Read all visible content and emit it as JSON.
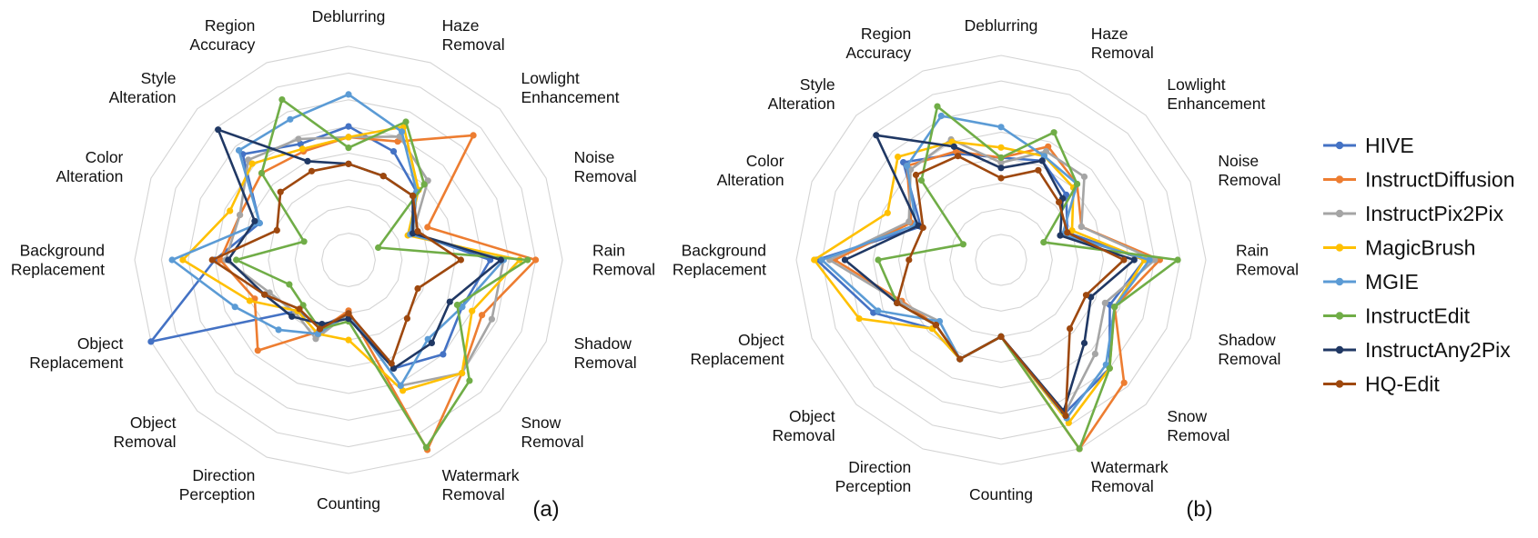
{
  "chart_data": [
    {
      "type": "radar",
      "panel_label": "(a)",
      "categories": [
        [
          "Deblurring"
        ],
        [
          "Haze",
          "Removal"
        ],
        [
          "Lowlight",
          "Enhancement"
        ],
        [
          "Noise",
          "Removal"
        ],
        [
          "Rain",
          "Removal"
        ],
        [
          "Shadow",
          "Removal"
        ],
        [
          "Snow",
          "Removal"
        ],
        [
          "Watermark",
          "Removal"
        ],
        [
          "Counting"
        ],
        [
          "Direction",
          "Perception"
        ],
        [
          "Object",
          "Removal"
        ],
        [
          "Object",
          "Replacement"
        ],
        [
          "Background",
          "Replacement"
        ],
        [
          "Color",
          "Alteration"
        ],
        [
          "Style",
          "Alteration"
        ],
        [
          "Region",
          "Accuracy"
        ]
      ],
      "grid_rings": 8,
      "max": 8,
      "series": [
        {
          "name": "HIVE",
          "color": "#4472C4",
          "values": [
            5.0,
            4.4,
            3.6,
            2.6,
            5.3,
            4.6,
            5.0,
            4.4,
            2.0,
            2.7,
            2.7,
            8.0,
            5.0,
            3.6,
            5.6,
            4.7
          ]
        },
        {
          "name": "InstructDiffusion",
          "color": "#ED7D31",
          "values": [
            4.6,
            4.8,
            6.6,
            3.2,
            7.0,
            5.4,
            6.0,
            7.7,
            1.9,
            2.9,
            4.8,
            3.8,
            4.8,
            4.4,
            4.6,
            4.4
          ]
        },
        {
          "name": "InstructPix2Pix",
          "color": "#A5A5A5",
          "values": [
            4.6,
            5.0,
            4.2,
            2.6,
            5.8,
            5.8,
            6.0,
            5.1,
            2.0,
            3.2,
            2.8,
            3.2,
            4.6,
            4.4,
            5.3,
            4.9
          ]
        },
        {
          "name": "MagicBrush",
          "color": "#FFC000",
          "values": [
            4.6,
            5.4,
            3.7,
            2.4,
            6.4,
            5.0,
            6.0,
            5.3,
            3.0,
            3.0,
            2.7,
            4.0,
            6.2,
            4.8,
            5.1,
            4.5
          ]
        },
        {
          "name": "MGIE",
          "color": "#5B9BD5",
          "values": [
            6.2,
            5.2,
            3.6,
            2.5,
            5.8,
            4.6,
            4.2,
            5.1,
            2.0,
            3.0,
            3.7,
            4.6,
            6.6,
            3.6,
            5.8,
            5.7
          ]
        },
        {
          "name": "InstructEdit",
          "color": "#70AD47",
          "values": [
            4.2,
            5.6,
            4.0,
            1.2,
            6.7,
            4.4,
            6.4,
            7.6,
            2.3,
            2.8,
            2.4,
            2.4,
            4.2,
            1.8,
            4.6,
            6.5
          ]
        },
        {
          "name": "InstructAny2Pix",
          "color": "#203864",
          "values": [
            3.6,
            3.4,
            3.4,
            2.6,
            5.7,
            4.1,
            4.4,
            4.4,
            2.2,
            2.6,
            3.0,
            3.4,
            4.5,
            3.8,
            6.9,
            4.0
          ]
        },
        {
          "name": "HQ-Edit",
          "color": "#9E480E",
          "values": [
            3.6,
            3.4,
            3.4,
            2.8,
            4.2,
            2.8,
            3.1,
            4.2,
            2.0,
            2.8,
            2.6,
            3.4,
            5.1,
            2.9,
            3.6,
            3.6
          ]
        }
      ]
    },
    {
      "type": "radar",
      "panel_label": "(b)",
      "categories": [
        [
          "Deblurring"
        ],
        [
          "Haze",
          "Removal"
        ],
        [
          "Lowlight",
          "Enhancement"
        ],
        [
          "Noise",
          "Removal"
        ],
        [
          "Rain",
          "Removal"
        ],
        [
          "Shadow",
          "Removal"
        ],
        [
          "Snow",
          "Removal"
        ],
        [
          "Watermark",
          "Removal"
        ],
        [
          "Counting"
        ],
        [
          "Direction",
          "Perception"
        ],
        [
          "Object",
          "Removal"
        ],
        [
          "Object",
          "Replacement"
        ],
        [
          "Background",
          "Replacement"
        ],
        [
          "Color",
          "Alteration"
        ],
        [
          "Style",
          "Alteration"
        ],
        [
          "Region",
          "Accuracy"
        ]
      ],
      "grid_rings": 8,
      "max": 8,
      "series": [
        {
          "name": "HIVE",
          "color": "#4472C4",
          "values": [
            4.0,
            4.2,
            3.6,
            2.8,
            5.6,
            4.6,
            6.0,
            6.5,
            3.0,
            4.2,
            3.8,
            5.4,
            7.2,
            3.4,
            5.4,
            4.5
          ]
        },
        {
          "name": "InstructDiffusion",
          "color": "#ED7D31",
          "values": [
            4.0,
            4.8,
            4.2,
            3.4,
            6.2,
            4.8,
            6.8,
            8.0,
            3.0,
            4.2,
            3.6,
            4.2,
            6.5,
            3.8,
            5.2,
            4.6
          ]
        },
        {
          "name": "InstructPix2Pix",
          "color": "#A5A5A5",
          "values": [
            3.8,
            4.6,
            4.6,
            3.4,
            6.0,
            4.4,
            5.2,
            6.5,
            3.0,
            4.2,
            3.4,
            4.3,
            6.7,
            3.9,
            5.0,
            5.1
          ]
        },
        {
          "name": "MagicBrush",
          "color": "#FFC000",
          "values": [
            4.4,
            4.4,
            4.0,
            3.0,
            5.6,
            4.8,
            6.0,
            6.9,
            3.0,
            4.2,
            3.8,
            6.0,
            7.3,
            4.8,
            5.7,
            5.0
          ]
        },
        {
          "name": "MGIE",
          "color": "#5B9BD5",
          "values": [
            5.2,
            4.4,
            4.2,
            2.6,
            5.8,
            4.8,
            5.8,
            6.7,
            3.0,
            4.2,
            3.4,
            5.2,
            7.0,
            3.6,
            5.2,
            6.1
          ]
        },
        {
          "name": "InstructEdit",
          "color": "#70AD47",
          "values": [
            4.0,
            5.4,
            4.2,
            1.8,
            6.9,
            4.8,
            6.0,
            8.0,
            3.0,
            4.2,
            3.6,
            4.4,
            4.8,
            1.6,
            4.4,
            6.5
          ]
        },
        {
          "name": "InstructAny2Pix",
          "color": "#203864",
          "values": [
            3.6,
            4.2,
            3.4,
            2.5,
            5.2,
            3.8,
            4.6,
            6.4,
            3.0,
            4.2,
            3.6,
            4.4,
            6.1,
            3.5,
            6.9,
            4.8
          ]
        },
        {
          "name": "HQ-Edit",
          "color": "#9E480E",
          "values": [
            3.2,
            3.8,
            3.2,
            2.8,
            4.8,
            3.6,
            3.8,
            6.6,
            3.0,
            4.2,
            3.6,
            4.4,
            3.6,
            3.3,
            4.7,
            4.4
          ]
        }
      ]
    }
  ],
  "legend": {
    "items": [
      {
        "name": "HIVE",
        "color": "#4472C4"
      },
      {
        "name": "InstructDiffusion",
        "color": "#ED7D31"
      },
      {
        "name": "InstructPix2Pix",
        "color": "#A5A5A5"
      },
      {
        "name": "MagicBrush",
        "color": "#FFC000"
      },
      {
        "name": "MGIE",
        "color": "#5B9BD5"
      },
      {
        "name": "InstructEdit",
        "color": "#70AD47"
      },
      {
        "name": "InstructAny2Pix",
        "color": "#203864"
      },
      {
        "name": "HQ-Edit",
        "color": "#9E480E"
      }
    ]
  }
}
